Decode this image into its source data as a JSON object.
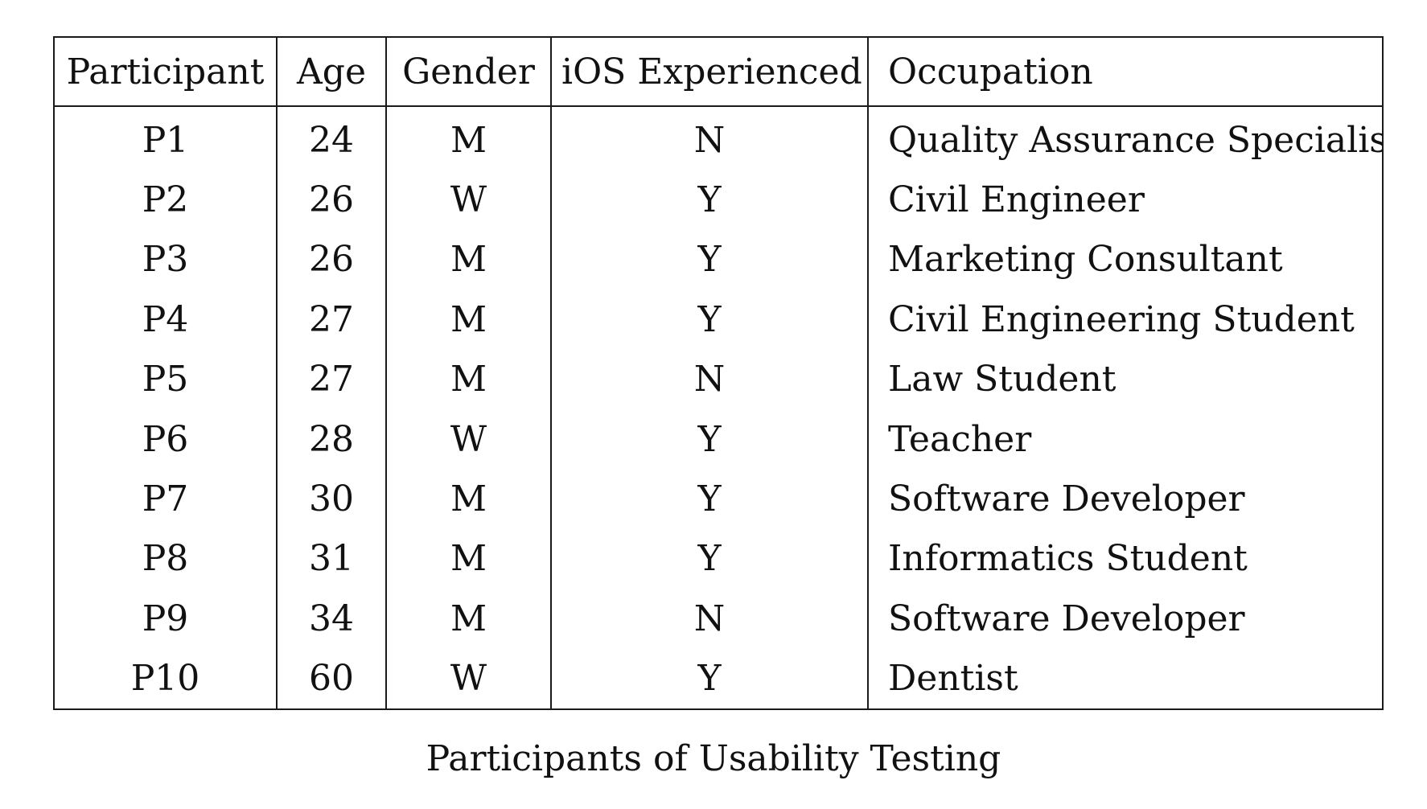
{
  "table": {
    "headers": [
      "Participant",
      "Age",
      "Gender",
      "iOS Experienced",
      "Occupation"
    ],
    "rows": [
      [
        "P1",
        "24",
        "M",
        "N",
        "Quality Assurance Specialist"
      ],
      [
        "P2",
        "26",
        "W",
        "Y",
        "Civil Engineer"
      ],
      [
        "P3",
        "26",
        "M",
        "Y",
        "Marketing Consultant"
      ],
      [
        "P4",
        "27",
        "M",
        "Y",
        "Civil Engineering Student"
      ],
      [
        "P5",
        "27",
        "M",
        "N",
        "Law Student"
      ],
      [
        "P6",
        "28",
        "W",
        "Y",
        "Teacher"
      ],
      [
        "P7",
        "30",
        "M",
        "Y",
        "Software Developer"
      ],
      [
        "P8",
        "31",
        "M",
        "Y",
        "Informatics Student"
      ],
      [
        "P9",
        "34",
        "M",
        "N",
        "Software Developer"
      ],
      [
        "P10",
        "60",
        "W",
        "Y",
        "Dentist"
      ]
    ]
  },
  "caption": "Participants of Usability Testing"
}
